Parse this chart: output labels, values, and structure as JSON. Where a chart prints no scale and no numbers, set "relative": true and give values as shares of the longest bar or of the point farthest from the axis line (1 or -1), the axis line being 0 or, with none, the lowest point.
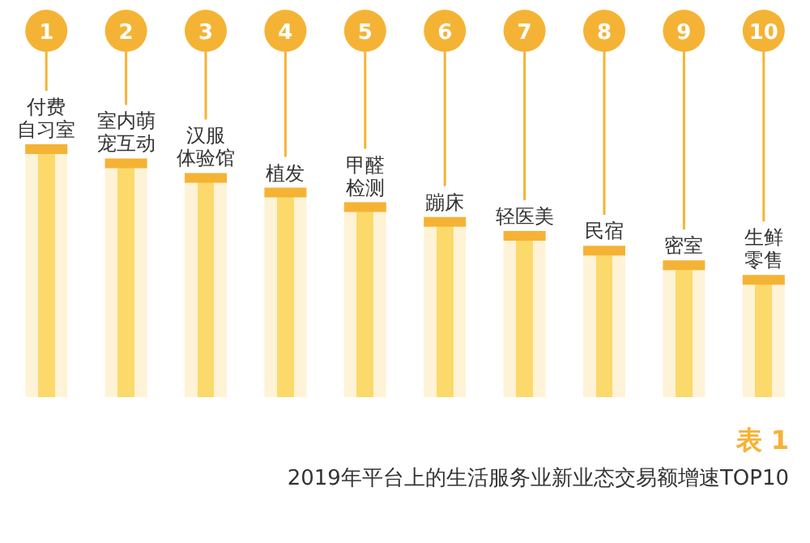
{
  "chart_data": {
    "type": "bar",
    "relative": true,
    "title": "2019年平台上的生活服务业新业态交易额增速TOP10",
    "categories": [
      "付费自习室",
      "室内萌宠互动",
      "汉服体验馆",
      "植发",
      "甲醛检测",
      "蹦床",
      "轻医美",
      "民宿",
      "密室",
      "生鲜零售"
    ],
    "values": [
      1,
      0.943,
      0.884,
      0.825,
      0.766,
      0.707,
      0.65,
      0.591,
      0.532,
      0.473
    ],
    "color": "#f5b335",
    "annotations": [
      "1",
      "2",
      "3",
      "4",
      "5",
      "6",
      "7",
      "8",
      "9",
      "10",
      "表 1"
    ]
  }
}
